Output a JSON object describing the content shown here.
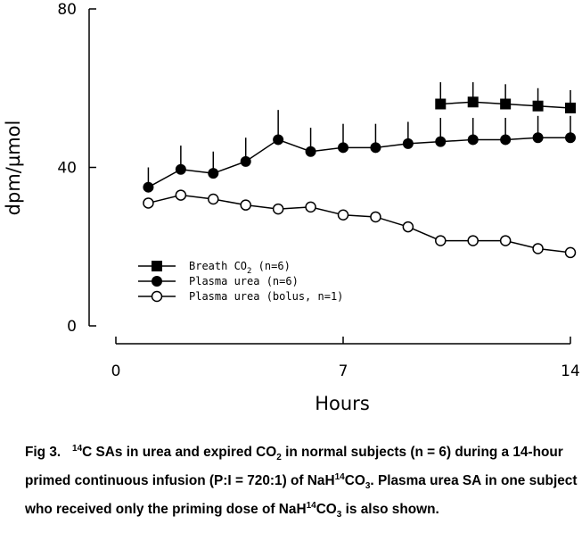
{
  "chart_data": {
    "type": "line",
    "xlabel": "Hours",
    "ylabel": "dpm/µmol",
    "xlim": [
      0,
      14
    ],
    "ylim": [
      0,
      80
    ],
    "x_ticks": [
      "0",
      "7",
      "14"
    ],
    "y_ticks": [
      "0",
      "40",
      "80"
    ],
    "legend_position": "lower-left",
    "series": [
      {
        "name_text": "Breath CO",
        "name_sub": "2",
        "name_suffix": " (n=6)",
        "marker": "filled-square",
        "x": [
          10,
          11,
          12,
          13,
          14
        ],
        "y": [
          56,
          56.5,
          56,
          55.5,
          55
        ],
        "err": [
          5.5,
          5,
          5,
          4.5,
          4.5
        ]
      },
      {
        "name_text": "Plasma urea (n=6)",
        "marker": "filled-circle",
        "x": [
          1,
          2,
          3,
          4,
          5,
          6,
          7,
          8,
          9,
          10,
          11,
          12,
          13,
          14
        ],
        "y": [
          35,
          39.5,
          38.5,
          41.5,
          47,
          44,
          45,
          45,
          46,
          46.5,
          47,
          47,
          47.5,
          47.5
        ],
        "err": [
          5,
          6,
          5.5,
          6,
          7.5,
          6,
          6,
          6,
          5.5,
          6,
          5.5,
          5.5,
          5.5,
          5.5
        ]
      },
      {
        "name_text": "Plasma urea (bolus, n=1)",
        "marker": "open-circle",
        "x": [
          1,
          2,
          3,
          4,
          5,
          6,
          7,
          8,
          9,
          10,
          11,
          12,
          13,
          14
        ],
        "y": [
          31,
          33,
          32,
          30.5,
          29.5,
          30,
          28,
          27.5,
          25,
          21.5,
          21.5,
          21.5,
          19.5,
          18.5
        ]
      }
    ]
  },
  "caption": {
    "fig_label": "Fig 3.",
    "sup1": "14",
    "part1": "C SAs in urea and expired CO",
    "sub1": "2",
    "part2": " in normal subjects (n = 6) during a 14-hour primed continuous infusion (P:I = 720:1) of NaH",
    "sup2": "14",
    "part3": "CO",
    "sub2": "3",
    "part4": ". Plasma urea SA in one subject who received only the priming dose of NaH",
    "sup3": "14",
    "part5": "CO",
    "sub3": "3",
    "part6": " is also shown."
  },
  "colors": {
    "ink": "#000000",
    "background": "#ffffff"
  }
}
